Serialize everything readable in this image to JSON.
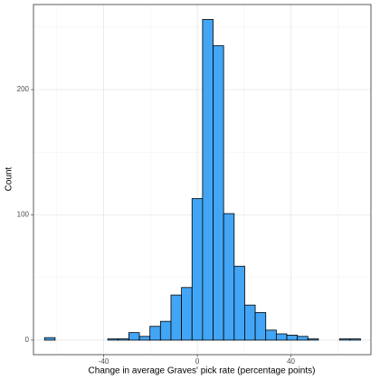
{
  "chart_data": {
    "type": "histogram",
    "xlabel": "Change in average Graves' pick rate (percentage points)",
    "ylabel": "Count",
    "bins": [
      -65.25,
      -60.75,
      -56.25,
      -51.75,
      -47.25,
      -42.75,
      -38.25,
      -33.75,
      -29.25,
      -24.75,
      -20.25,
      -15.75,
      -11.25,
      -6.75,
      -2.25,
      2.25,
      6.75,
      11.25,
      15.75,
      20.25,
      24.75,
      29.25,
      33.75,
      38.25,
      42.75,
      47.25,
      51.75,
      56.25,
      60.75,
      65.25,
      69.75
    ],
    "values": [
      2,
      0,
      0,
      0,
      0,
      0,
      1,
      1,
      6,
      3,
      11,
      15,
      36,
      42,
      113,
      256,
      235,
      101,
      59,
      28,
      22,
      8,
      5,
      4,
      3,
      1,
      0,
      0,
      1,
      1
    ],
    "color": "#42a5f5",
    "xlim": [
      -70,
      74.2
    ],
    "xticks": [
      -40,
      0,
      40
    ],
    "x_minor_ticks": [
      -60,
      -20,
      20,
      60
    ],
    "ylim": [
      -11.6,
      267.9
    ],
    "yticks": [
      0,
      100,
      200
    ],
    "y_minor_ticks": [
      50,
      150,
      250
    ],
    "grid": true
  }
}
